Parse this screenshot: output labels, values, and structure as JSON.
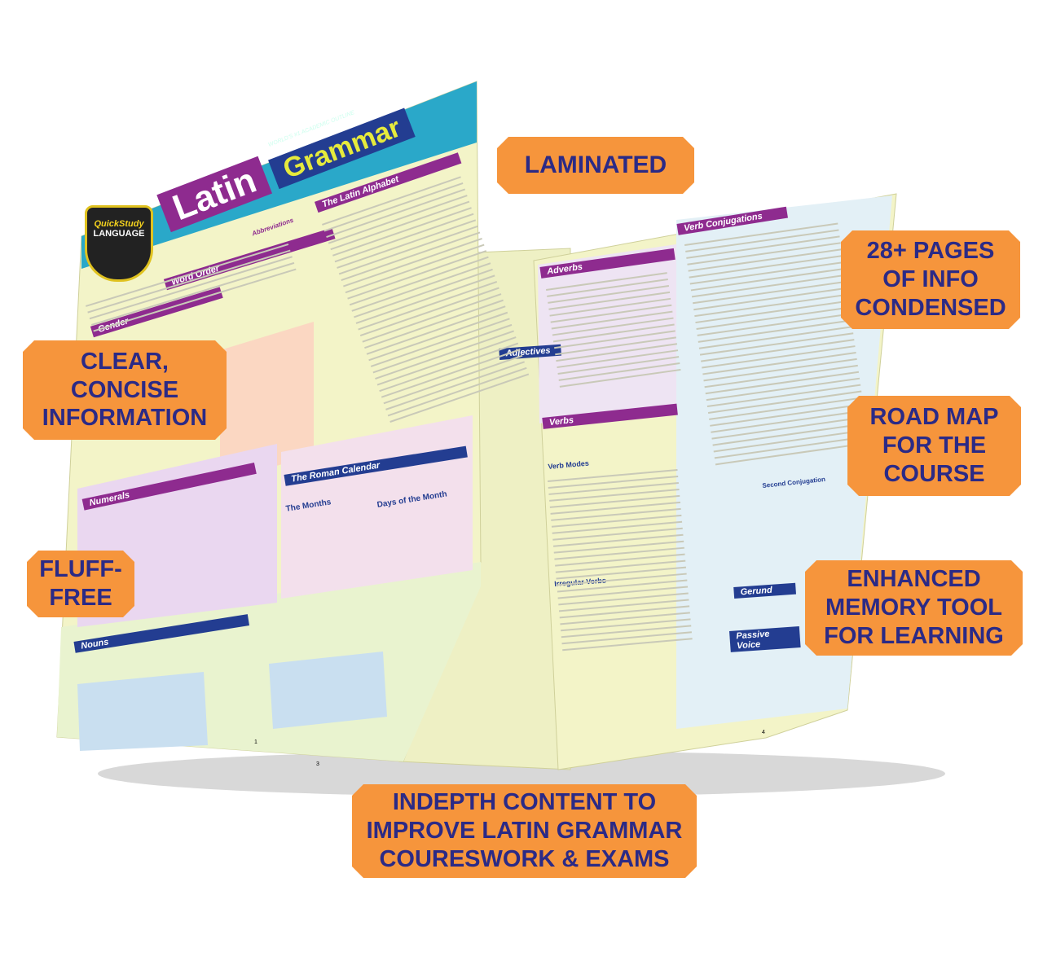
{
  "product": {
    "brand_line": "WORLD'S #1 ACADEMIC OUTLINE",
    "logo_top": "QuickStudy",
    "logo_bottom": "LANGUAGE",
    "title_word1": "Latin",
    "title_word2": "Grammar"
  },
  "sections": {
    "left": [
      "Word Order",
      "Gender",
      "Numerals",
      "Nouns",
      "The Latin Alphabet",
      "Abbreviations",
      "The Roman Calendar",
      "The Months",
      "Days of the Month"
    ],
    "middle": [
      "Adjectives"
    ],
    "right": [
      "Adverbs",
      "Verbs",
      "Verb Modes",
      "Irregular Verbs",
      "Verb Conjugations",
      "Gerund",
      "Passive Voice",
      "Second Conjugation"
    ]
  },
  "page_numbers": [
    "3",
    "1",
    "4"
  ],
  "callouts": {
    "laminated": "LAMINATED",
    "pages": "28+ PAGES\nOF INFO\nCONDENSED",
    "clear": "CLEAR,\nCONCISE\nINFORMATION",
    "roadmap": "ROAD MAP\nFOR THE\nCOURSE",
    "fluff": "FLUFF-\nFREE",
    "memory": "ENHANCED\nMEMORY TOOL\nFOR LEARNING",
    "indepth": "INDEPTH CONTENT TO\nIMPROVE LATIN GRAMMAR\nCOURESWORK & EXAMS"
  },
  "colors": {
    "callout_bg": "#f6953c",
    "callout_text": "#2b2a86",
    "sheet": "#f3f4c8",
    "header_purple": "#8e2b8f",
    "header_blue": "#233d91",
    "banner_teal": "#2aa8c9"
  }
}
